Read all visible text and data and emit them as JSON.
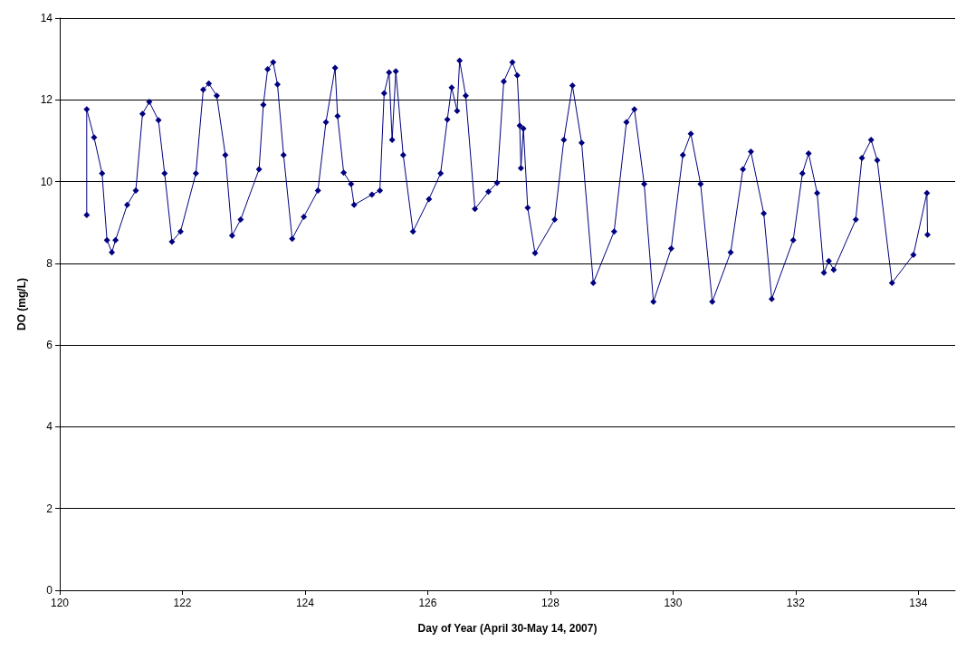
{
  "chart_data": {
    "type": "line",
    "xlabel": "Day of Year (April 30-May 14, 2007)",
    "ylabel": "DO (mg/L)",
    "xlim": [
      120,
      134.6
    ],
    "xticks": [
      120,
      122,
      124,
      126,
      128,
      130,
      132,
      134
    ],
    "ylim": [
      0,
      14
    ],
    "yticks": [
      0,
      2,
      4,
      6,
      8,
      10,
      12,
      14
    ],
    "grid": "y",
    "marker": "diamond",
    "line_style": "solid",
    "series": [
      {
        "color": "#000080",
        "x": [
          120.44,
          120.44,
          120.56,
          120.69,
          120.77,
          120.85,
          120.91,
          121.1,
          121.24,
          121.35,
          121.46,
          121.61,
          121.71,
          121.83,
          121.97,
          122.22,
          122.34,
          122.43,
          122.56,
          122.7,
          122.81,
          122.95,
          123.25,
          123.32,
          123.39,
          123.48,
          123.55,
          123.65,
          123.79,
          123.98,
          124.21,
          124.34,
          124.49,
          124.53,
          124.63,
          124.75,
          124.8,
          125.09,
          125.22,
          125.29,
          125.37,
          125.42,
          125.48,
          125.6,
          125.76,
          126.02,
          126.21,
          126.32,
          126.39,
          126.48,
          126.52,
          126.62,
          126.77,
          126.99,
          127.13,
          127.24,
          127.38,
          127.46,
          127.5,
          127.52,
          127.56,
          127.63,
          127.75,
          128.07,
          128.22,
          128.36,
          128.51,
          128.7,
          129.04,
          129.24,
          129.37,
          129.53,
          129.68,
          129.97,
          130.16,
          130.29,
          130.45,
          130.64,
          130.94,
          131.14,
          131.27,
          131.48,
          131.61,
          131.96,
          132.11,
          132.21,
          132.35,
          132.46,
          132.54,
          132.62,
          132.98,
          133.08,
          133.23,
          133.33,
          133.57,
          133.92,
          134.14,
          134.15
        ],
        "values": [
          9.18,
          11.77,
          11.08,
          10.2,
          8.57,
          8.27,
          8.57,
          9.43,
          9.78,
          11.66,
          11.95,
          11.5,
          10.2,
          8.53,
          8.78,
          10.2,
          12.25,
          12.4,
          12.1,
          10.65,
          8.68,
          9.07,
          10.3,
          11.88,
          12.75,
          12.92,
          12.38,
          10.65,
          8.6,
          9.14,
          9.78,
          11.45,
          12.78,
          11.6,
          10.22,
          9.94,
          9.43,
          9.68,
          9.78,
          12.16,
          12.67,
          11.02,
          12.7,
          10.65,
          8.78,
          9.57,
          10.2,
          11.52,
          12.3,
          11.73,
          12.96,
          12.1,
          9.33,
          9.75,
          9.97,
          12.45,
          12.92,
          12.6,
          11.37,
          10.33,
          11.3,
          9.36,
          8.25,
          9.07,
          11.02,
          12.35,
          10.95,
          7.52,
          8.78,
          11.45,
          11.77,
          9.94,
          7.06,
          8.36,
          10.65,
          11.17,
          9.94,
          7.06,
          8.27,
          10.3,
          10.73,
          9.22,
          7.13,
          8.57,
          10.2,
          10.69,
          9.72,
          7.77,
          8.06,
          7.84,
          9.07,
          10.58,
          11.02,
          10.52,
          7.52,
          8.21,
          9.72,
          8.7
        ]
      }
    ]
  }
}
